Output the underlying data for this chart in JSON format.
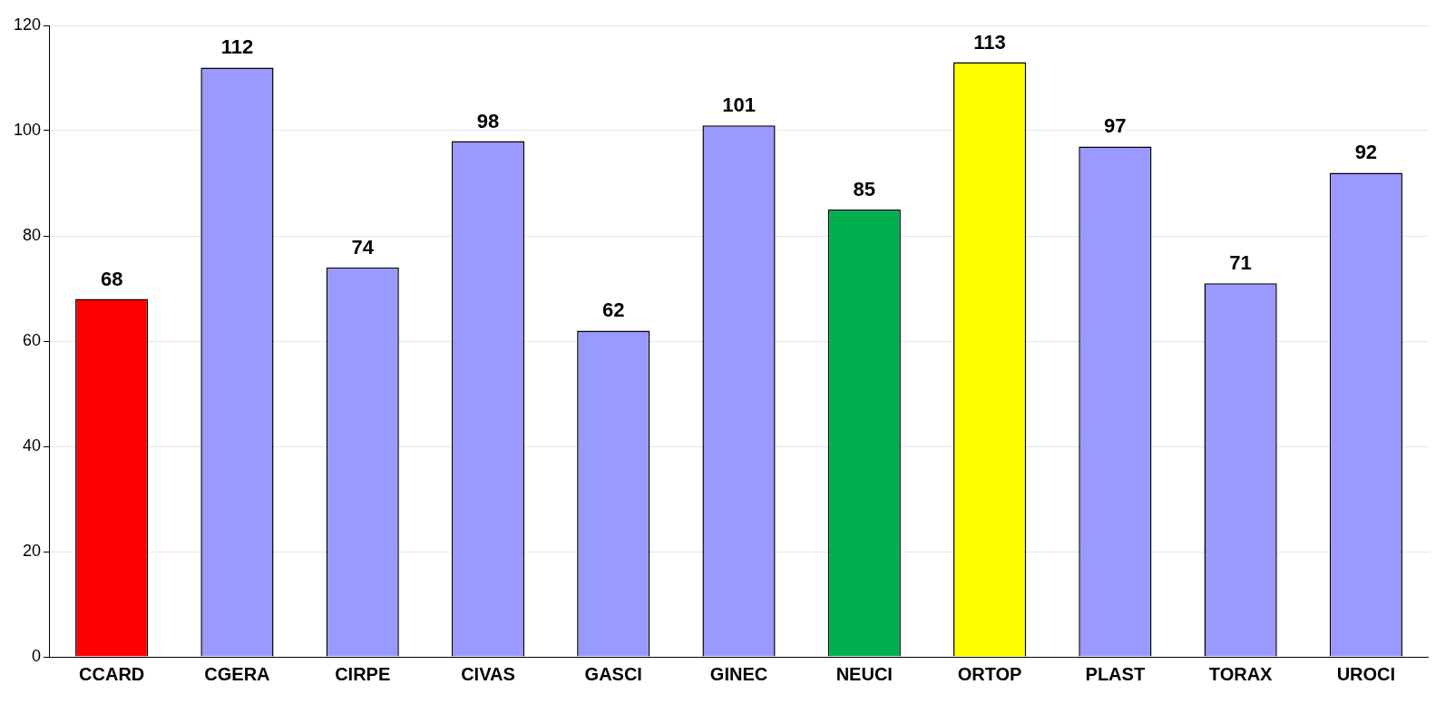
{
  "chart_data": {
    "type": "bar",
    "categories": [
      "CCARD",
      "CGERA",
      "CIRPE",
      "CIVAS",
      "GASCI",
      "GINEC",
      "NEUCI",
      "ORTOP",
      "PLAST",
      "TORAX",
      "UROCI"
    ],
    "values": [
      68,
      112,
      74,
      98,
      62,
      101,
      85,
      113,
      97,
      71,
      92
    ],
    "colors": [
      "#ff0000",
      "#9999ff",
      "#9999ff",
      "#9999ff",
      "#9999ff",
      "#9999ff",
      "#00b050",
      "#ffff00",
      "#9999ff",
      "#9999ff",
      "#9999ff"
    ],
    "ylim": [
      0,
      120
    ],
    "yticks": [
      0,
      20,
      40,
      60,
      80,
      100,
      120
    ],
    "grid": "y",
    "data_labels": true,
    "legend": false
  }
}
